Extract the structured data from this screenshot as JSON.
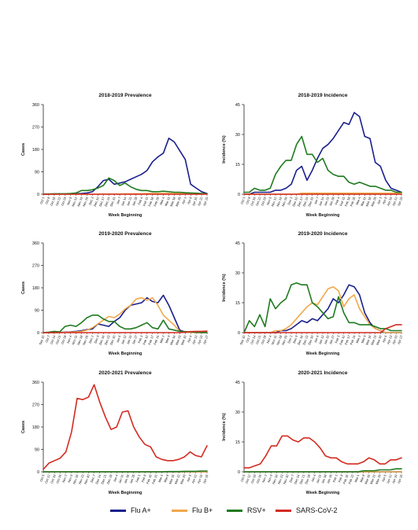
{
  "figure": {
    "colors": {
      "Flu A+": "#1a1f8c",
      "Flu B+": "#f0a84a",
      "RSV+": "#1f7a1f",
      "SARS-CoV-2": "#d42a20"
    },
    "legend": [
      "Flu A+",
      "Flu B+",
      "RSV+",
      "SARS-CoV-2"
    ]
  },
  "chart_data": [
    {
      "type": "line",
      "title": "2018-2019 Prevalence",
      "xlabel": "Week Beginning",
      "ylabel": "Cases",
      "ylim": [
        0,
        360
      ],
      "yticks": [
        "0",
        "90",
        "180",
        "270",
        "360"
      ],
      "x": [
        "Oct 1",
        "Oct 8",
        "Oct 15",
        "Oct 22",
        "Oct 29",
        "Nov 5",
        "Nov 12",
        "Nov 19",
        "Nov 26",
        "Dec 3",
        "Dec 10",
        "Dec 17",
        "Dec 24",
        "Dec 31",
        "Jan 7",
        "Jan 14",
        "Jan 21",
        "Jan 28",
        "Feb 4",
        "Feb 11",
        "Feb 18",
        "Feb 25",
        "Mar 4",
        "Mar 11",
        "Mar 18",
        "Mar 25",
        "Apr 1",
        "Apr 8",
        "Apr 15",
        "Apr 22",
        "Apr 29"
      ],
      "series": [
        {
          "name": "Flu A+",
          "values": [
            0,
            0,
            1,
            1,
            1,
            1,
            2,
            3,
            5,
            10,
            30,
            55,
            60,
            40,
            45,
            50,
            60,
            70,
            80,
            95,
            130,
            150,
            165,
            225,
            210,
            175,
            140,
            40,
            25,
            10,
            3
          ]
        },
        {
          "name": "Flu B+",
          "values": [
            0,
            0,
            0,
            0,
            0,
            0,
            0,
            0,
            0,
            0,
            0,
            1,
            1,
            1,
            1,
            2,
            2,
            2,
            2,
            3,
            3,
            3,
            3,
            3,
            3,
            3,
            3,
            2,
            2,
            1,
            1
          ]
        },
        {
          "name": "RSV+",
          "values": [
            1,
            1,
            2,
            2,
            2,
            3,
            5,
            15,
            15,
            18,
            25,
            35,
            65,
            55,
            35,
            45,
            30,
            20,
            15,
            15,
            10,
            10,
            12,
            10,
            8,
            8,
            6,
            5,
            4,
            3,
            2
          ]
        },
        {
          "name": "SARS-CoV-2",
          "values": [
            0,
            0,
            0,
            0,
            0,
            0,
            0,
            0,
            0,
            0,
            0,
            0,
            0,
            0,
            0,
            0,
            0,
            0,
            0,
            0,
            0,
            0,
            0,
            0,
            0,
            0,
            0,
            0,
            0,
            0,
            0
          ]
        }
      ]
    },
    {
      "type": "line",
      "title": "2018-2019 Incidence",
      "xlabel": "Week Beginning",
      "ylabel": "Incidence (%)",
      "ylim": [
        0,
        45
      ],
      "yticks": [
        "0",
        "15",
        "30",
        "45"
      ],
      "x": [
        "Oct 1",
        "Oct 8",
        "Oct 15",
        "Oct 22",
        "Oct 29",
        "Nov 5",
        "Nov 12",
        "Nov 19",
        "Nov 26",
        "Dec 3",
        "Dec 10",
        "Dec 17",
        "Dec 24",
        "Dec 31",
        "Jan 7",
        "Jan 14",
        "Jan 21",
        "Jan 28",
        "Feb 4",
        "Feb 11",
        "Feb 18",
        "Feb 25",
        "Mar 4",
        "Mar 11",
        "Mar 18",
        "Mar 25",
        "Apr 1",
        "Apr 8",
        "Apr 15",
        "Apr 22",
        "Apr 29"
      ],
      "series": [
        {
          "name": "Flu A+",
          "values": [
            0,
            0,
            1,
            1,
            1,
            1,
            2,
            2,
            3,
            5,
            12,
            14,
            7,
            12,
            18,
            23,
            25,
            28,
            32,
            36,
            35,
            41,
            39,
            29,
            28,
            16,
            14,
            7,
            3,
            2,
            1
          ]
        },
        {
          "name": "Flu B+",
          "values": [
            0,
            0,
            0,
            0,
            0,
            0,
            0,
            0,
            0,
            0,
            0,
            0.5,
            0.5,
            0.5,
            0.5,
            0.5,
            0.5,
            0.5,
            0.5,
            0.5,
            0.5,
            0.5,
            0.5,
            0.5,
            0.5,
            0.5,
            0.5,
            0.5,
            0.5,
            0.5,
            0.5
          ]
        },
        {
          "name": "RSV+",
          "values": [
            1,
            1,
            3,
            2,
            2,
            3,
            10,
            14,
            17,
            17,
            25,
            29,
            20,
            20,
            16,
            18,
            12,
            10,
            9,
            9,
            6,
            5,
            6,
            5,
            4,
            4,
            3,
            2,
            2,
            1,
            1
          ]
        },
        {
          "name": "SARS-CoV-2",
          "values": [
            0,
            0,
            0,
            0,
            0,
            0,
            0,
            0,
            0,
            0,
            0,
            0,
            0,
            0,
            0,
            0,
            0,
            0,
            0,
            0,
            0,
            0,
            0,
            0,
            0,
            0,
            0,
            0,
            0,
            0,
            0
          ]
        }
      ]
    },
    {
      "type": "line",
      "title": "2019-2020 Prevalence",
      "xlabel": "Week Beginning",
      "ylabel": "Cases",
      "ylim": [
        0,
        360
      ],
      "yticks": [
        "0",
        "90",
        "180",
        "270",
        "360"
      ],
      "x": [
        "Sep 30",
        "Oct 7",
        "Oct 14",
        "Oct 21",
        "Oct 28",
        "Nov 4",
        "Nov 11",
        "Nov 18",
        "Nov 25",
        "Dec 2",
        "Dec 9",
        "Dec 16",
        "Dec 23",
        "Dec 30",
        "Jan 6",
        "Jan 13",
        "Jan 20",
        "Jan 27",
        "Feb 3",
        "Feb 10",
        "Feb 17",
        "Feb 24",
        "Mar 2",
        "Mar 9",
        "Mar 16",
        "Mar 23",
        "Mar 30",
        "Apr 6",
        "Apr 13",
        "Apr 20",
        "Apr 27"
      ],
      "series": [
        {
          "name": "Flu A+",
          "values": [
            0,
            0,
            0,
            1,
            2,
            3,
            5,
            8,
            12,
            15,
            35,
            30,
            25,
            45,
            60,
            90,
            110,
            115,
            120,
            140,
            125,
            120,
            150,
            110,
            60,
            10,
            2,
            1,
            0,
            0,
            0
          ]
        },
        {
          "name": "Flu B+",
          "values": [
            0,
            0,
            0,
            0,
            1,
            2,
            3,
            5,
            10,
            20,
            35,
            50,
            65,
            60,
            75,
            95,
            110,
            135,
            140,
            130,
            140,
            110,
            70,
            50,
            30,
            5,
            2,
            1,
            0,
            0,
            0
          ]
        },
        {
          "name": "RSV+",
          "values": [
            0,
            2,
            5,
            3,
            25,
            30,
            25,
            40,
            60,
            70,
            70,
            55,
            45,
            45,
            25,
            15,
            15,
            20,
            30,
            40,
            20,
            15,
            50,
            15,
            10,
            5,
            4,
            3,
            2,
            1,
            0
          ]
        },
        {
          "name": "SARS-CoV-2",
          "values": [
            0,
            0,
            0,
            0,
            0,
            0,
            0,
            0,
            0,
            0,
            0,
            0,
            0,
            0,
            0,
            0,
            0,
            0,
            0,
            0,
            0,
            0,
            0,
            0,
            0,
            0,
            2,
            4,
            5,
            5,
            6
          ]
        }
      ]
    },
    {
      "type": "line",
      "title": "2019-2020 Incidence",
      "xlabel": "Week Beginning",
      "ylabel": "Incidence (%)",
      "ylim": [
        0,
        45
      ],
      "yticks": [
        "0",
        "15",
        "30",
        "45"
      ],
      "x": [
        "Sep 30",
        "Oct 7",
        "Oct 14",
        "Oct 21",
        "Oct 28",
        "Nov 4",
        "Nov 11",
        "Nov 18",
        "Nov 25",
        "Dec 2",
        "Dec 9",
        "Dec 16",
        "Dec 23",
        "Dec 30",
        "Jan 6",
        "Jan 13",
        "Jan 20",
        "Jan 27",
        "Feb 3",
        "Feb 10",
        "Feb 17",
        "Feb 24",
        "Mar 2",
        "Mar 9",
        "Mar 16",
        "Mar 23",
        "Mar 30",
        "Apr 6",
        "Apr 13",
        "Apr 20",
        "Apr 27"
      ],
      "series": [
        {
          "name": "Flu A+",
          "values": [
            0,
            0,
            0,
            0,
            0,
            0,
            0,
            1,
            1,
            2,
            4,
            6,
            5,
            7,
            6,
            9,
            12,
            17,
            15,
            19,
            24,
            23,
            19,
            10,
            5,
            2,
            1,
            0,
            0,
            0,
            0
          ]
        },
        {
          "name": "Flu B+",
          "values": [
            0,
            0,
            0,
            0,
            0,
            0,
            1,
            1,
            2,
            4,
            7,
            10,
            13,
            15,
            14,
            18,
            22,
            23,
            21,
            13,
            17,
            19,
            12,
            8,
            4,
            2,
            1,
            0,
            0,
            0,
            0
          ]
        },
        {
          "name": "RSV+",
          "values": [
            0,
            6,
            3,
            9,
            3,
            17,
            12,
            15,
            17,
            24,
            25,
            24,
            24,
            15,
            13,
            10,
            7,
            8,
            18,
            10,
            5,
            5,
            4,
            4,
            4,
            3,
            2,
            2,
            1,
            1,
            1
          ]
        },
        {
          "name": "SARS-CoV-2",
          "values": [
            0,
            0,
            0,
            0,
            0,
            0,
            0,
            0,
            0,
            0,
            0,
            0,
            0,
            0,
            0,
            0,
            0,
            0,
            0,
            0,
            0,
            0,
            0,
            0,
            0,
            0,
            0,
            2,
            3,
            4,
            4
          ]
        }
      ]
    },
    {
      "type": "line",
      "title": "2020-2021 Prevalence",
      "xlabel": "Week Beginning",
      "ylabel": "Cases",
      "ylim": [
        0,
        360
      ],
      "yticks": [
        "0",
        "90",
        "180",
        "270",
        "360"
      ],
      "x": [
        "Oct 5",
        "Oct 12",
        "Oct 19",
        "Oct 26",
        "Nov 2",
        "Nov 9",
        "Nov 16",
        "Nov 23",
        "Nov 30",
        "Dec 7",
        "Dec 14",
        "Dec 21",
        "Dec 28",
        "Jan 4",
        "Jan 11",
        "Jan 18",
        "Jan 25",
        "Feb 1",
        "Feb 8",
        "Feb 15",
        "Feb 22",
        "Mar 1",
        "Mar 8",
        "Mar 15",
        "Mar 22",
        "Mar 29",
        "Apr 5",
        "Apr 12",
        "Apr 19",
        "Apr 26"
      ],
      "series": [
        {
          "name": "Flu A+",
          "values": [
            0,
            0,
            0,
            0,
            0,
            0,
            0,
            0,
            0,
            0,
            0,
            0,
            0,
            0,
            0,
            0,
            0,
            0,
            0,
            0,
            0,
            0,
            0,
            0,
            0,
            0,
            0,
            0,
            0,
            0
          ]
        },
        {
          "name": "Flu B+",
          "values": [
            0,
            0,
            0,
            0,
            0,
            0,
            0,
            0,
            0,
            0,
            0,
            0,
            0,
            0,
            0,
            0,
            0,
            0,
            0,
            0,
            0,
            0,
            0,
            0,
            0,
            0,
            0,
            0,
            0,
            0
          ]
        },
        {
          "name": "RSV+",
          "values": [
            0,
            0,
            0,
            0,
            0,
            0,
            0,
            0,
            0,
            0,
            0,
            0,
            0,
            0,
            0,
            0,
            0,
            0,
            0,
            0,
            0,
            0,
            1,
            1,
            1,
            2,
            2,
            2,
            3,
            3
          ]
        },
        {
          "name": "SARS-CoV-2",
          "values": [
            10,
            35,
            45,
            55,
            80,
            160,
            295,
            290,
            300,
            350,
            280,
            220,
            170,
            180,
            240,
            245,
            180,
            140,
            110,
            100,
            60,
            50,
            45,
            45,
            50,
            60,
            80,
            65,
            60,
            105
          ]
        }
      ]
    },
    {
      "type": "line",
      "title": "2020-2021 Incidence",
      "xlabel": "Week Beginning",
      "ylabel": "Incidence (%)",
      "ylim": [
        0,
        45
      ],
      "yticks": [
        "0",
        "15",
        "30",
        "45"
      ],
      "x": [
        "Oct 5",
        "Oct 12",
        "Oct 19",
        "Oct 26",
        "Nov 2",
        "Nov 9",
        "Nov 16",
        "Nov 23",
        "Nov 30",
        "Dec 7",
        "Dec 14",
        "Dec 21",
        "Dec 28",
        "Jan 4",
        "Jan 11",
        "Jan 18",
        "Jan 25",
        "Feb 1",
        "Feb 8",
        "Feb 15",
        "Feb 22",
        "Mar 1",
        "Mar 8",
        "Mar 15",
        "Mar 22",
        "Mar 29",
        "Apr 5",
        "Apr 12",
        "Apr 19",
        "Apr 26"
      ],
      "series": [
        {
          "name": "Flu A+",
          "values": [
            0,
            0,
            0,
            0,
            0,
            0,
            0,
            0,
            0,
            0,
            0,
            0,
            0,
            0,
            0,
            0,
            0,
            0,
            0,
            0,
            0,
            0,
            0,
            0,
            0,
            0,
            0,
            0,
            0,
            0
          ]
        },
        {
          "name": "Flu B+",
          "values": [
            0,
            0,
            0,
            0,
            0,
            0,
            0,
            0,
            0,
            0,
            0,
            0,
            0,
            0,
            0,
            0,
            0,
            0,
            0,
            0,
            0,
            0,
            0,
            0,
            0,
            0,
            0,
            0,
            0,
            0
          ]
        },
        {
          "name": "RSV+",
          "values": [
            0,
            0,
            0,
            0,
            0,
            0,
            0,
            0,
            0,
            0,
            0,
            0,
            0,
            0,
            0,
            0,
            0,
            0,
            0,
            0,
            0,
            0,
            0.5,
            0.5,
            0.5,
            1,
            1,
            1,
            1.5,
            1.5
          ]
        },
        {
          "name": "SARS-CoV-2",
          "values": [
            2,
            2,
            3,
            4,
            8,
            13,
            13,
            18,
            18,
            16,
            15,
            17,
            17,
            15,
            12,
            8,
            7,
            7,
            5,
            4,
            4,
            4,
            5,
            7,
            6,
            4,
            4,
            6,
            6,
            7
          ]
        }
      ]
    }
  ]
}
